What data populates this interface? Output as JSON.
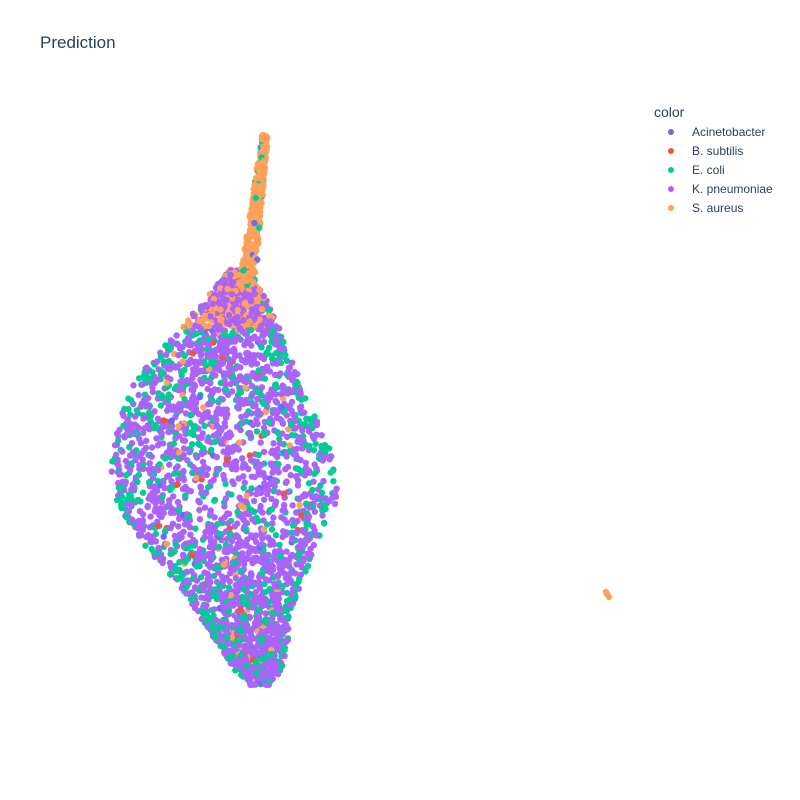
{
  "chart_data": {
    "type": "scatter",
    "title": "Prediction",
    "xlabel": "",
    "ylabel": "",
    "grid": false,
    "legend_position": "top-right",
    "legend_title": "color",
    "series": [
      {
        "name": "Acinetobacter",
        "color": "#636efa"
      },
      {
        "name": "B. subtilis",
        "color": "#EF553B"
      },
      {
        "name": "E. coli",
        "color": "#00cc96"
      },
      {
        "name": "K. pneumoniae",
        "color": "#ab63fa"
      },
      {
        "name": "S. aureus",
        "color": "#FFA15A"
      }
    ]
  }
}
